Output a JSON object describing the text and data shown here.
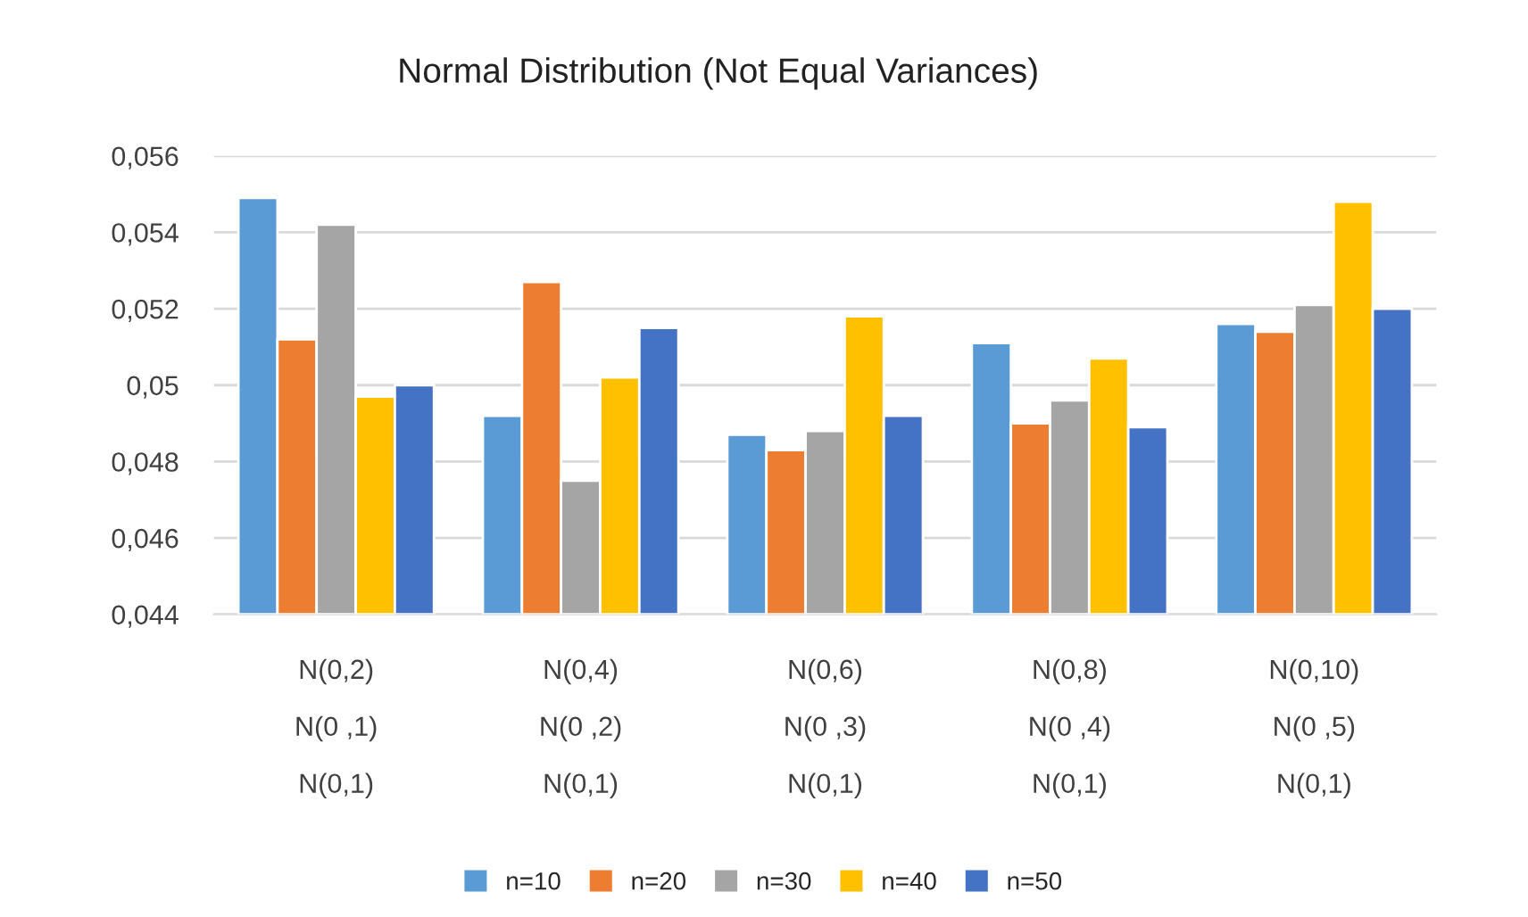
{
  "chart_data": {
    "type": "bar",
    "title": "Normal Distribution (Not Equal Variances)",
    "categories": [
      "N(0,2)\nN(0 ,1)\nN(0,1)",
      "N(0,4)\nN(0 ,2)\nN(0,1)",
      "N(0,6)\nN(0 ,3)\nN(0,1)",
      "N(0,8)\nN(0 ,4)\nN(0,1)",
      "N(0,10)\nN(0 ,5)\nN(0,1)"
    ],
    "series": [
      {
        "name": "n=10",
        "color": "#5b9bd5",
        "values": [
          0.0549,
          0.0492,
          0.0487,
          0.0511,
          0.0516
        ]
      },
      {
        "name": "n=20",
        "color": "#ed7d31",
        "values": [
          0.0512,
          0.0527,
          0.0483,
          0.049,
          0.0514
        ]
      },
      {
        "name": "n=30",
        "color": "#a5a5a5",
        "values": [
          0.0542,
          0.0475,
          0.0488,
          0.0496,
          0.0521
        ]
      },
      {
        "name": "n=40",
        "color": "#ffc000",
        "values": [
          0.0497,
          0.0502,
          0.0518,
          0.0507,
          0.0548
        ]
      },
      {
        "name": "n=50",
        "color": "#4472c4",
        "values": [
          0.05,
          0.0515,
          0.0492,
          0.0489,
          0.052
        ]
      }
    ],
    "ylim": [
      0.044,
      0.056
    ],
    "yticks": [
      {
        "value": 0.044,
        "label": "0,044"
      },
      {
        "value": 0.046,
        "label": "0,046"
      },
      {
        "value": 0.048,
        "label": "0,048"
      },
      {
        "value": 0.05,
        "label": "0,05"
      },
      {
        "value": 0.052,
        "label": "0,052"
      },
      {
        "value": 0.054,
        "label": "0,054"
      },
      {
        "value": 0.056,
        "label": "0,056"
      }
    ],
    "grid": "y",
    "legend": "bottom"
  }
}
